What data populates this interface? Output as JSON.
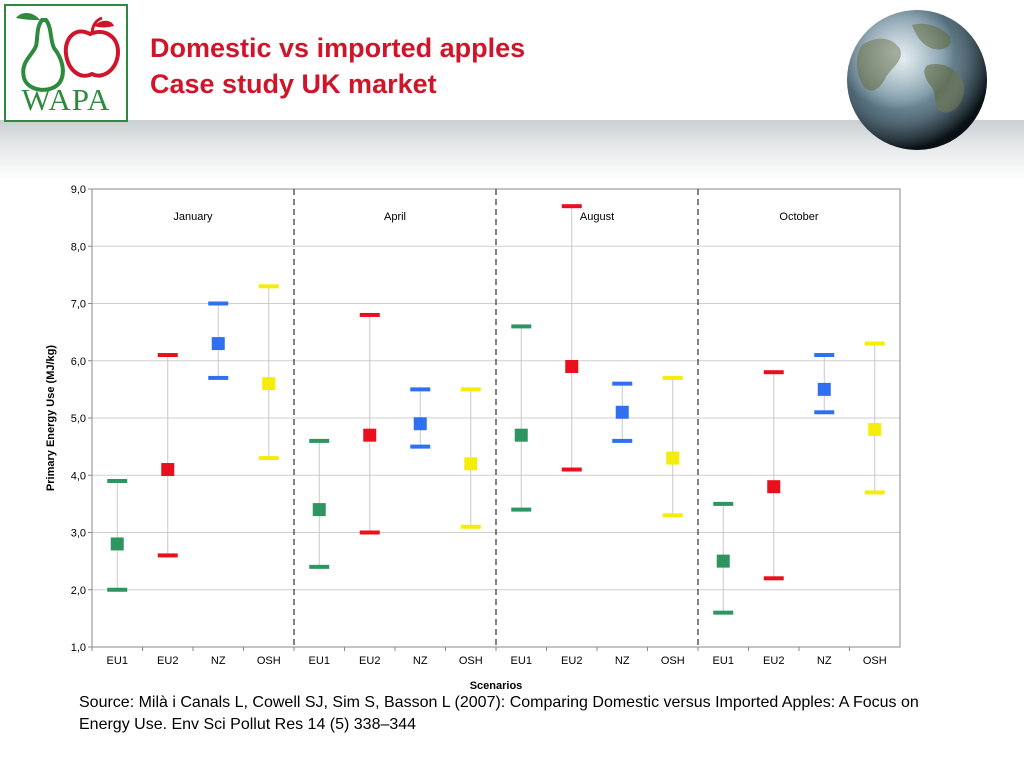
{
  "header": {
    "logo_text": "WAPA",
    "title_line1": "Domestic vs imported apples",
    "title_line2": "Case study UK market"
  },
  "source_text": "Source: Milà i Canals L, Cowell SJ, Sim S, Basson L (2007): Comparing Domestic versus Imported Apples: A Focus on Energy Use. Env Sci Pollut Res 14 (5) 338–344",
  "chart_data": {
    "type": "scatter",
    "title": "",
    "xlabel": "Scenarios",
    "ylabel": "Primary Energy Use (MJ/kg)",
    "ylim": [
      1,
      9
    ],
    "yticks": [
      "1,0",
      "2,0",
      "3,0",
      "4,0",
      "5,0",
      "6,0",
      "7,0",
      "8,0",
      "9,0"
    ],
    "grid": true,
    "categories": [
      "EU1",
      "EU2",
      "NZ",
      "OSH",
      "EU1",
      "EU2",
      "NZ",
      "OSH",
      "EU1",
      "EU2",
      "NZ",
      "OSH",
      "EU1",
      "EU2",
      "NZ",
      "OSH"
    ],
    "groups": [
      "January",
      "April",
      "August",
      "October"
    ],
    "series_colors": {
      "EU1": "#2e9460",
      "EU2": "#e8101c",
      "NZ": "#2f6ff0",
      "OSH": "#f5ec0a"
    },
    "points": [
      {
        "group": "January",
        "scenario": "EU1",
        "mean": 2.8,
        "min": 2.0,
        "max": 3.9
      },
      {
        "group": "January",
        "scenario": "EU2",
        "mean": 4.1,
        "min": 2.6,
        "max": 6.1
      },
      {
        "group": "January",
        "scenario": "NZ",
        "mean": 6.3,
        "min": 5.7,
        "max": 7.0
      },
      {
        "group": "January",
        "scenario": "OSH",
        "mean": 5.6,
        "min": 4.3,
        "max": 7.3
      },
      {
        "group": "April",
        "scenario": "EU1",
        "mean": 3.4,
        "min": 2.4,
        "max": 4.6
      },
      {
        "group": "April",
        "scenario": "EU2",
        "mean": 4.7,
        "min": 3.0,
        "max": 6.8
      },
      {
        "group": "April",
        "scenario": "NZ",
        "mean": 4.9,
        "min": 4.5,
        "max": 5.5
      },
      {
        "group": "April",
        "scenario": "OSH",
        "mean": 4.2,
        "min": 3.1,
        "max": 5.5
      },
      {
        "group": "August",
        "scenario": "EU1",
        "mean": 4.7,
        "min": 3.4,
        "max": 6.6
      },
      {
        "group": "August",
        "scenario": "EU2",
        "mean": 5.9,
        "min": 4.1,
        "max": 8.7
      },
      {
        "group": "August",
        "scenario": "NZ",
        "mean": 5.1,
        "min": 4.6,
        "max": 5.6
      },
      {
        "group": "August",
        "scenario": "OSH",
        "mean": 4.3,
        "min": 3.3,
        "max": 5.7
      },
      {
        "group": "October",
        "scenario": "EU1",
        "mean": 2.5,
        "min": 1.6,
        "max": 3.5
      },
      {
        "group": "October",
        "scenario": "EU2",
        "mean": 3.8,
        "min": 2.2,
        "max": 5.8
      },
      {
        "group": "October",
        "scenario": "NZ",
        "mean": 5.5,
        "min": 5.1,
        "max": 6.1
      },
      {
        "group": "October",
        "scenario": "OSH",
        "mean": 4.8,
        "min": 3.7,
        "max": 6.3
      }
    ]
  }
}
